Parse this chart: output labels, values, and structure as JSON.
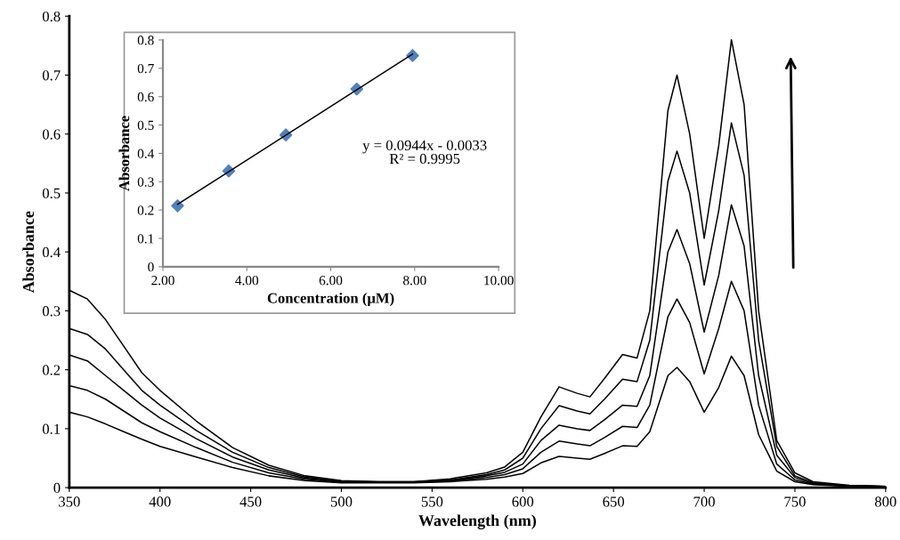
{
  "chart_data": [
    {
      "type": "line",
      "xlabel": "Wavelength (nm)",
      "ylabel": "Absorbance",
      "x": [
        350,
        360,
        370,
        380,
        390,
        400,
        420,
        440,
        460,
        480,
        500,
        520,
        540,
        560,
        580,
        590,
        600,
        610,
        620,
        630,
        637,
        645,
        655,
        663,
        670,
        680,
        685,
        692,
        700,
        708,
        715,
        722,
        730,
        740,
        750,
        760,
        780,
        800
      ],
      "series": [
        {
          "color": "#000000",
          "values": [
            0.335,
            0.32,
            0.285,
            0.24,
            0.195,
            0.165,
            0.113,
            0.068,
            0.038,
            0.02,
            0.012,
            0.01,
            0.01,
            0.015,
            0.025,
            0.035,
            0.06,
            0.12,
            0.171,
            0.16,
            0.154,
            0.185,
            0.226,
            0.22,
            0.3,
            0.64,
            0.7,
            0.6,
            0.423,
            0.58,
            0.76,
            0.65,
            0.3,
            0.08,
            0.025,
            0.01,
            0.004,
            0.002
          ]
        },
        {
          "color": "#000000",
          "values": [
            0.27,
            0.26,
            0.235,
            0.2,
            0.165,
            0.14,
            0.097,
            0.06,
            0.034,
            0.018,
            0.011,
            0.01,
            0.01,
            0.013,
            0.022,
            0.03,
            0.05,
            0.1,
            0.139,
            0.13,
            0.125,
            0.15,
            0.184,
            0.18,
            0.25,
            0.52,
            0.571,
            0.5,
            0.344,
            0.47,
            0.619,
            0.53,
            0.25,
            0.07,
            0.02,
            0.008,
            0.003,
            0.002
          ]
        },
        {
          "color": "#000000",
          "values": [
            0.225,
            0.215,
            0.19,
            0.165,
            0.14,
            0.118,
            0.083,
            0.052,
            0.03,
            0.016,
            0.01,
            0.009,
            0.009,
            0.012,
            0.02,
            0.026,
            0.04,
            0.08,
            0.106,
            0.1,
            0.097,
            0.115,
            0.14,
            0.138,
            0.19,
            0.4,
            0.438,
            0.38,
            0.264,
            0.36,
            0.48,
            0.41,
            0.19,
            0.055,
            0.017,
            0.007,
            0.003,
            0.002
          ]
        },
        {
          "color": "#000000",
          "values": [
            0.173,
            0.165,
            0.15,
            0.13,
            0.11,
            0.095,
            0.068,
            0.043,
            0.025,
            0.014,
            0.009,
            0.009,
            0.009,
            0.011,
            0.017,
            0.022,
            0.032,
            0.06,
            0.079,
            0.074,
            0.071,
            0.085,
            0.104,
            0.102,
            0.14,
            0.29,
            0.32,
            0.28,
            0.193,
            0.27,
            0.35,
            0.3,
            0.14,
            0.04,
            0.013,
            0.006,
            0.003,
            0.002
          ]
        },
        {
          "color": "#000000",
          "values": [
            0.128,
            0.12,
            0.108,
            0.095,
            0.082,
            0.07,
            0.052,
            0.034,
            0.02,
            0.012,
            0.008,
            0.008,
            0.008,
            0.01,
            0.014,
            0.018,
            0.024,
            0.042,
            0.053,
            0.05,
            0.048,
            0.058,
            0.071,
            0.07,
            0.095,
            0.19,
            0.204,
            0.18,
            0.128,
            0.17,
            0.223,
            0.19,
            0.09,
            0.028,
            0.01,
            0.005,
            0.002,
            0.002
          ]
        }
      ],
      "xlim": [
        350,
        800
      ],
      "xticks": [
        350,
        400,
        450,
        500,
        550,
        600,
        650,
        700,
        750,
        800
      ],
      "ylim": [
        0,
        0.8
      ],
      "yticks": [
        0,
        0.1,
        0.2,
        0.3,
        0.4,
        0.5,
        0.6,
        0.7,
        0.8
      ],
      "grid": false,
      "legend": false,
      "marker": "none",
      "line_style": "solid"
    },
    {
      "type": "scatter",
      "xlabel": "Concentration (μM)",
      "ylabel": "Absorbance",
      "series": [
        {
          "type": "scatter",
          "color": "#4f81bd",
          "marker": "diamond",
          "x": [
            2.35,
            3.57,
            4.93,
            6.62,
            7.95
          ],
          "values": [
            0.215,
            0.338,
            0.465,
            0.627,
            0.745
          ]
        },
        {
          "type": "line",
          "color": "#000000",
          "marker": "none",
          "x": [
            2.35,
            7.95
          ],
          "values": [
            0.22,
            0.75
          ]
        }
      ],
      "xlim": [
        2,
        10
      ],
      "xticks": [
        {
          "value": 2,
          "label": "2.00"
        },
        {
          "value": 4,
          "label": "4.00"
        },
        {
          "value": 6,
          "label": "6.00"
        },
        {
          "value": 8,
          "label": "8.00"
        },
        {
          "value": 10,
          "label": "10.00"
        }
      ],
      "ylim": [
        0,
        0.8
      ],
      "yticks": [
        0,
        0.1,
        0.2,
        0.3,
        0.4,
        0.5,
        0.6,
        0.7,
        0.8
      ],
      "annotations": [
        "y = 0.0944x - 0.0033\nR² = 0.9995"
      ],
      "grid": false,
      "legend": false
    }
  ]
}
